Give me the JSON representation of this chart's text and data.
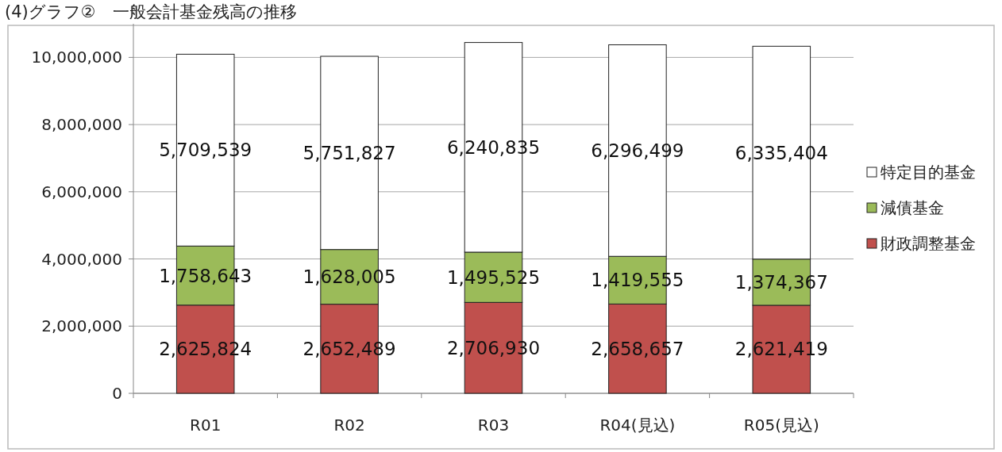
{
  "chart_data": {
    "type": "bar",
    "title": "(4)グラフ②　一般会計基金残高の推移",
    "stacked": true,
    "categories": [
      "R01",
      "R02",
      "R03",
      "R04(見込)",
      "R05(見込)"
    ],
    "series": [
      {
        "name": "財政調整基金",
        "color": "#c0504d",
        "values": [
          2625824,
          2652489,
          2706930,
          2658657,
          2621419
        ],
        "value_labels": [
          "2,625,824",
          "2,652,489",
          "2,706,930",
          "2,658,657",
          "2,621,419"
        ]
      },
      {
        "name": "減債基金",
        "color": "#9bbb59",
        "values": [
          1758643,
          1628005,
          1495525,
          1419555,
          1374367
        ],
        "value_labels": [
          "1,758,643",
          "1,628,005",
          "1,495,525",
          "1,419,555",
          "1,374,367"
        ]
      },
      {
        "name": "特定目的基金",
        "color": "#ffffff",
        "values": [
          5709539,
          5751827,
          6240835,
          6296499,
          6335404
        ],
        "value_labels": [
          "5,709,539",
          "5,751,827",
          "6,240,835",
          "6,296,499",
          "6,335,404"
        ]
      }
    ],
    "ylim": [
      0,
      11000000
    ],
    "yticks": [
      0,
      {
        "value": 2000000,
        "label": "2,000,000"
      },
      {
        "value": 4000000,
        "label": "4,000,000"
      },
      {
        "value": 6000000,
        "label": "6,000,000"
      },
      {
        "value": 8000000,
        "label": "8,000,000"
      },
      {
        "value": 10000000,
        "label": "10,000,000"
      }
    ],
    "grid": "y",
    "legend": "right"
  }
}
